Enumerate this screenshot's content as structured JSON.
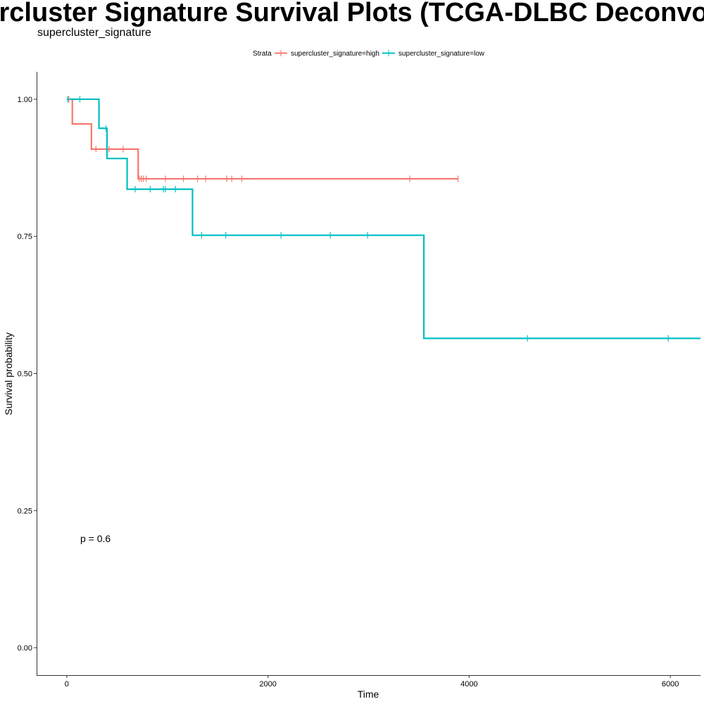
{
  "chart_data": {
    "type": "line",
    "step": true,
    "title": "Supercluster Signature Survival Plots (TCGA-DLBC Deconvolved)",
    "subtitle": "supercluster_signature",
    "xlabel": "Time",
    "ylabel": "Survival probability",
    "xlim": [
      -300,
      6300
    ],
    "ylim": [
      -0.05,
      1.05
    ],
    "x_ticks": [
      0,
      2000,
      4000,
      6000
    ],
    "y_ticks": [
      0.0,
      0.25,
      0.5,
      0.75,
      1.0
    ],
    "x_tick_labels": [
      "0",
      "2000",
      "4000",
      "6000"
    ],
    "y_tick_labels": [
      "0.00",
      "0.25",
      "0.50",
      "0.75",
      "1.00"
    ],
    "grid": false,
    "legend": {
      "title": "Strata",
      "position": "top",
      "entries": [
        "supercluster_signature=high",
        "supercluster_signature=low"
      ]
    },
    "annotation": "p = 0.6",
    "series": [
      {
        "name": "supercluster_signature=high",
        "color": "#F8766D",
        "steps": [
          [
            0,
            1.0
          ],
          [
            55,
            0.955
          ],
          [
            245,
            0.909
          ],
          [
            710,
            0.855
          ],
          [
            3890,
            0.855
          ]
        ],
        "censor_times": [
          20,
          290,
          420,
          560,
          720,
          740,
          760,
          790,
          980,
          1160,
          1300,
          1380,
          1590,
          1640,
          1740,
          3410,
          3890
        ]
      },
      {
        "name": "supercluster_signature=low",
        "color": "#00BFC4",
        "steps": [
          [
            0,
            1.0
          ],
          [
            320,
            0.947
          ],
          [
            400,
            0.892
          ],
          [
            600,
            0.836
          ],
          [
            1250,
            0.752
          ],
          [
            3550,
            0.564
          ],
          [
            6300,
            0.564
          ]
        ],
        "censor_times": [
          10,
          130,
          390,
          680,
          830,
          960,
          980,
          1080,
          1340,
          1580,
          2130,
          2620,
          2990,
          4580,
          5980
        ]
      }
    ]
  }
}
